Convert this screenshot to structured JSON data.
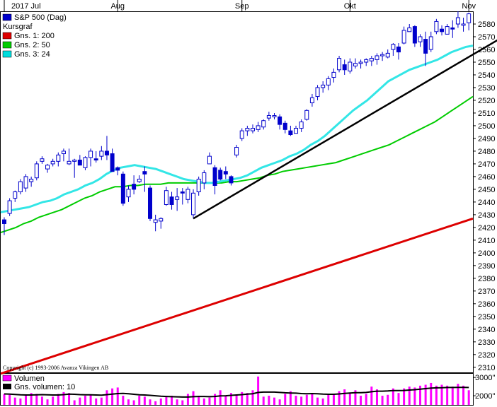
{
  "chart_data": [
    {
      "type": "candlestick",
      "title": "S&P 500 (Dag)",
      "legend": [
        {
          "label": "S&P 500 (Dag)",
          "color": "#0000cc"
        },
        {
          "label": "Kursgraf",
          "color": null
        },
        {
          "label": "Gns. 1: 200",
          "color": "#dd0000"
        },
        {
          "label": "Gns. 2: 50",
          "color": "#00cc00"
        },
        {
          "label": "Gns. 3: 24",
          "color": "#00dddd"
        }
      ],
      "x_labels": [
        "2017 Jul",
        "Aug",
        "Sep",
        "Okt",
        "Nov"
      ],
      "month_index": [
        0,
        21,
        44,
        64,
        86
      ],
      "y_ticks": [
        2310,
        2320,
        2330,
        2340,
        2350,
        2360,
        2370,
        2380,
        2390,
        2400,
        2410,
        2420,
        2430,
        2440,
        2450,
        2460,
        2470,
        2480,
        2490,
        2500,
        2510,
        2520,
        2530,
        2540,
        2550,
        2560,
        2570,
        2580
      ],
      "ylim": [
        2306,
        2590
      ],
      "grid": false,
      "legend_position": "top-left",
      "copyright": "Copyright (c) 1993-2006 Avanza Vikingen AB",
      "ohlc": [
        [
          2426,
          2428,
          2414,
          2423
        ],
        [
          2431,
          2443,
          2429,
          2441
        ],
        [
          2443,
          2449,
          2440,
          2448
        ],
        [
          2448,
          2458,
          2446,
          2456
        ],
        [
          2451,
          2462,
          2448,
          2460
        ],
        [
          2456,
          2460,
          2452,
          2458
        ],
        [
          2459,
          2472,
          2457,
          2470
        ],
        [
          2472,
          2476,
          2470,
          2474
        ],
        [
          2466,
          2470,
          2463,
          2469
        ],
        [
          2470,
          2474,
          2468,
          2472
        ],
        [
          2472,
          2479,
          2468,
          2477
        ],
        [
          2478,
          2482,
          2472,
          2480
        ],
        [
          2470,
          2482,
          2469,
          2472
        ],
        [
          2472,
          2474,
          2459,
          2473
        ],
        [
          2473,
          2477,
          2469,
          2469
        ],
        [
          2467,
          2476,
          2465,
          2475
        ],
        [
          2475,
          2482,
          2468,
          2480
        ],
        [
          2474,
          2480,
          2471,
          2473
        ],
        [
          2476,
          2484,
          2473,
          2480
        ],
        [
          2480,
          2492,
          2473,
          2477
        ],
        [
          2478,
          2482,
          2466,
          2464
        ],
        [
          2467,
          2468,
          2461,
          2465
        ],
        [
          2462,
          2464,
          2437,
          2439
        ],
        [
          2444,
          2453,
          2440,
          2450
        ],
        [
          2454,
          2461,
          2446,
          2450
        ],
        [
          2456,
          2461,
          2455,
          2458
        ],
        [
          2464,
          2468,
          2448,
          2462
        ],
        [
          2451,
          2453,
          2425,
          2427
        ],
        [
          2424,
          2430,
          2417,
          2426
        ],
        [
          2425,
          2428,
          2419,
          2427
        ],
        [
          2438,
          2452,
          2437,
          2449
        ],
        [
          2444,
          2448,
          2434,
          2438
        ],
        [
          2442,
          2451,
          2433,
          2444
        ],
        [
          2448,
          2451,
          2438,
          2447
        ],
        [
          2442,
          2452,
          2439,
          2450
        ],
        [
          2430,
          2450,
          2427,
          2447
        ],
        [
          2448,
          2460,
          2445,
          2458
        ],
        [
          2455,
          2465,
          2450,
          2463
        ],
        [
          2470,
          2479,
          2470,
          2476
        ],
        [
          2467,
          2469,
          2446,
          2453
        ],
        [
          2465,
          2467,
          2457,
          2458
        ],
        [
          2464,
          2468,
          2458,
          2462
        ],
        [
          2460,
          2461,
          2453,
          2455
        ],
        [
          2477,
          2485,
          2475,
          2483
        ],
        [
          2490,
          2498,
          2488,
          2496
        ],
        [
          2496,
          2500,
          2492,
          2498
        ],
        [
          2496,
          2501,
          2494,
          2498
        ],
        [
          2497,
          2503,
          2495,
          2500
        ],
        [
          2499,
          2505,
          2497,
          2504
        ],
        [
          2506,
          2511,
          2504,
          2508
        ],
        [
          2507,
          2510,
          2505,
          2508
        ],
        [
          2507,
          2509,
          2497,
          2501
        ],
        [
          2502,
          2504,
          2494,
          2497
        ],
        [
          2496,
          2500,
          2492,
          2493
        ],
        [
          2494,
          2500,
          2494,
          2498
        ],
        [
          2498,
          2505,
          2495,
          2503
        ],
        [
          2505,
          2513,
          2504,
          2512
        ],
        [
          2518,
          2525,
          2515,
          2522
        ],
        [
          2523,
          2532,
          2520,
          2530
        ],
        [
          2530,
          2535,
          2526,
          2532
        ],
        [
          2532,
          2539,
          2528,
          2537
        ],
        [
          2538,
          2545,
          2534,
          2542
        ],
        [
          2544,
          2555,
          2542,
          2553
        ],
        [
          2548,
          2552,
          2540,
          2544
        ],
        [
          2543,
          2553,
          2541,
          2550
        ],
        [
          2547,
          2553,
          2545,
          2549
        ],
        [
          2549,
          2552,
          2545,
          2550
        ],
        [
          2550,
          2553,
          2547,
          2552
        ],
        [
          2551,
          2555,
          2547,
          2553
        ],
        [
          2552,
          2557,
          2548,
          2555
        ],
        [
          2555,
          2558,
          2551,
          2556
        ],
        [
          2554,
          2560,
          2553,
          2557
        ],
        [
          2560,
          2565,
          2555,
          2564
        ],
        [
          2562,
          2565,
          2552,
          2558
        ],
        [
          2565,
          2578,
          2564,
          2575
        ],
        [
          2574,
          2580,
          2574,
          2577
        ],
        [
          2578,
          2579,
          2562,
          2565
        ],
        [
          2566,
          2572,
          2562,
          2570
        ],
        [
          2568,
          2574,
          2547,
          2557
        ],
        [
          2560,
          2574,
          2558,
          2570
        ],
        [
          2574,
          2584,
          2572,
          2582
        ],
        [
          2576,
          2579,
          2571,
          2574
        ],
        [
          2572,
          2580,
          2572,
          2578
        ],
        [
          2577,
          2583,
          2569,
          2576
        ],
        [
          2580,
          2590,
          2577,
          2585
        ],
        [
          2579,
          2585,
          2574,
          2580
        ],
        [
          2581,
          2589,
          2575,
          2588
        ]
      ],
      "ma200": {
        "start": 2305,
        "end": 2427
      },
      "ma50": [
        2416,
        2418,
        2420,
        2423,
        2425,
        2428,
        2430,
        2432,
        2434,
        2437,
        2440,
        2443,
        2445,
        2448,
        2450,
        2452,
        2452,
        2453,
        2453,
        2454,
        2454,
        2454,
        2455,
        2455,
        2455,
        2455,
        2455,
        2455,
        2455,
        2455,
        2456,
        2456,
        2457,
        2458,
        2459,
        2461,
        2462,
        2464,
        2465,
        2466,
        2467,
        2468,
        2469,
        2470,
        2471,
        2473,
        2475,
        2477,
        2479,
        2481,
        2483,
        2485,
        2488,
        2491,
        2494,
        2497,
        2500,
        2503,
        2507,
        2511,
        2515,
        2519,
        2523
      ],
      "ma24": [
        2432,
        2433,
        2434,
        2435,
        2436,
        2438,
        2440,
        2441,
        2443,
        2446,
        2448,
        2450,
        2453,
        2455,
        2458,
        2462,
        2465,
        2467,
        2468,
        2469,
        2468,
        2467,
        2466,
        2464,
        2462,
        2460,
        2458,
        2457,
        2456,
        2455,
        2455,
        2456,
        2457,
        2458,
        2459,
        2461,
        2464,
        2467,
        2469,
        2471,
        2473,
        2476,
        2478,
        2481,
        2485,
        2488,
        2492,
        2497,
        2502,
        2507,
        2512,
        2516,
        2520,
        2525,
        2530,
        2535,
        2538,
        2541,
        2544,
        2546,
        2548,
        2550,
        2552,
        2555,
        2558,
        2560,
        2562,
        2563
      ],
      "trendline": [
        [
          35,
          2427
        ],
        [
          96,
          2579
        ]
      ],
      "volume": {
        "legend": [
          {
            "label": "Volumen",
            "color": "#ff00ff"
          },
          {
            "label": "Gns. volumen: 10",
            "color": "#000000"
          }
        ],
        "y_ticks": [
          "3000\"",
          "2000\""
        ],
        "values": [
          2100,
          2050,
          1900,
          1850,
          2000,
          2150,
          2100,
          1950,
          1800,
          1950,
          2100,
          2200,
          2150,
          1750,
          1900,
          2000,
          2050,
          1850,
          1900,
          2300,
          2400,
          2450,
          2000,
          1800,
          1750,
          2000,
          1950,
          1800,
          1700,
          1850,
          1950,
          2000,
          1800,
          1750,
          2100,
          2250,
          2000,
          1850,
          1900,
          2100,
          2300,
          2000,
          2150,
          2050,
          2200,
          2150,
          2300,
          3050,
          1950,
          2000,
          1900,
          1800,
          2100,
          2250,
          2000,
          1950,
          2050,
          2150,
          1900,
          1850,
          2050,
          2100,
          2250,
          2350,
          2150,
          2300,
          2000,
          2100,
          2500,
          2350,
          2000,
          2050,
          2400,
          2150,
          2400,
          2500,
          2450,
          2550,
          2600,
          2700,
          2550,
          2600,
          2550,
          2500,
          2650,
          2550,
          2300
        ],
        "avg": [
          2100,
          2090,
          2070,
          2050,
          2040,
          2040,
          2050,
          2060,
          2050,
          2040,
          2040,
          2060,
          2090,
          2080,
          2060,
          2050,
          2050,
          2040,
          2030,
          2060,
          2090,
          2120,
          2130,
          2110,
          2080,
          2050,
          2040,
          2020,
          2000,
          1970,
          1960,
          1950,
          1940,
          1930,
          1930,
          1950,
          1960,
          1960,
          1950,
          1960,
          1990,
          2000,
          2020,
          2040,
          2060,
          2090,
          2110,
          2180,
          2200,
          2200,
          2200,
          2180,
          2160,
          2150,
          2140,
          2120,
          2110,
          2120,
          2110,
          2090,
          2080,
          2080,
          2100,
          2130,
          2150,
          2170,
          2170,
          2180,
          2220,
          2250,
          2250,
          2260,
          2280,
          2280,
          2290,
          2310,
          2330,
          2360,
          2390,
          2420,
          2430,
          2440,
          2450,
          2450,
          2460,
          2460,
          2450
        ]
      }
    }
  ]
}
